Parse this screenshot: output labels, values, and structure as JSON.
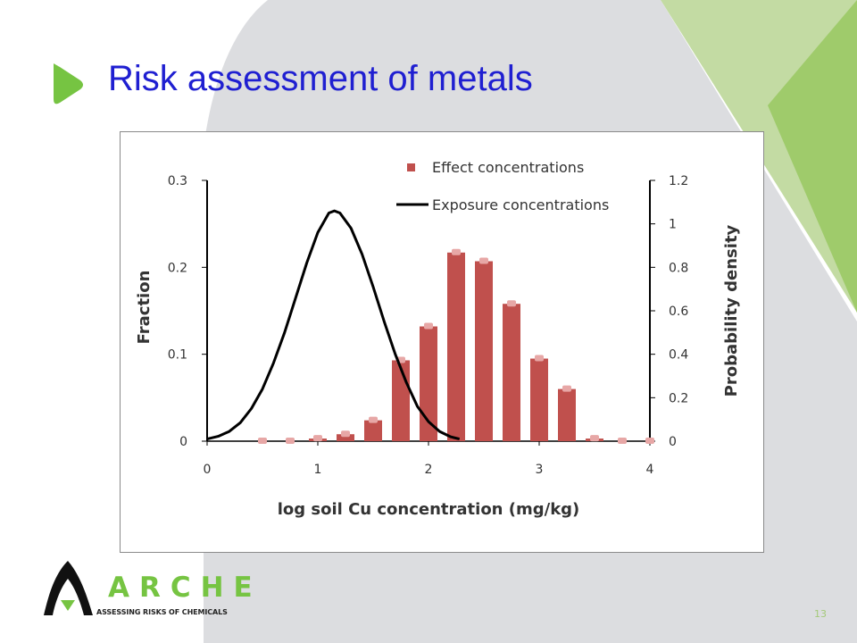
{
  "slide": {
    "title": "Risk assessment of metals",
    "page_number": "13",
    "logo": {
      "name": "ARCHE",
      "tagline": "ASSESSING RISKS OF CHEMICALS"
    },
    "colors": {
      "title": "#1f1fd1",
      "accent_green": "#76c442",
      "light_green": "#c3dba3",
      "background_gray": "#dcdde0"
    }
  },
  "chart_data": {
    "type": "bar",
    "xlabel": "log soil Cu concentration (mg/kg)",
    "ylabel": "Fraction",
    "y2label": "Probability density",
    "xlim": [
      0,
      4
    ],
    "ylim": [
      0,
      0.3
    ],
    "y2lim": [
      0,
      1.2
    ],
    "x_ticks": [
      "0",
      "1",
      "2",
      "3",
      "4"
    ],
    "y_ticks": [
      "0",
      "0.1",
      "0.2",
      "0.3"
    ],
    "y2_ticks": [
      "0",
      "0.2",
      "0.4",
      "0.6",
      "0.8",
      "1",
      "1.2"
    ],
    "legend_position": "top-center",
    "series": [
      {
        "name": "Effect concentrations",
        "type": "bar",
        "axis": "left",
        "color": "#c0504d",
        "x": [
          0.5,
          0.75,
          1.0,
          1.25,
          1.5,
          1.75,
          2.0,
          2.25,
          2.5,
          2.75,
          3.0,
          3.25,
          3.5,
          3.75,
          4.0
        ],
        "values": [
          0.0,
          0.0,
          0.003,
          0.008,
          0.024,
          0.093,
          0.132,
          0.217,
          0.207,
          0.158,
          0.095,
          0.06,
          0.003,
          0.0,
          0.0
        ]
      },
      {
        "name": "Exposure concentrations",
        "type": "line",
        "axis": "right",
        "color": "#000000",
        "x": [
          0,
          0.1,
          0.2,
          0.3,
          0.4,
          0.5,
          0.6,
          0.7,
          0.8,
          0.9,
          1.0,
          1.1,
          1.15,
          1.2,
          1.3,
          1.4,
          1.5,
          1.6,
          1.7,
          1.8,
          1.9,
          2.0,
          2.1,
          2.2,
          2.28
        ],
        "values": [
          0.01,
          0.022,
          0.045,
          0.085,
          0.15,
          0.24,
          0.36,
          0.5,
          0.66,
          0.82,
          0.96,
          1.05,
          1.06,
          1.05,
          0.98,
          0.86,
          0.71,
          0.55,
          0.4,
          0.27,
          0.16,
          0.09,
          0.045,
          0.02,
          0.01
        ]
      }
    ]
  }
}
